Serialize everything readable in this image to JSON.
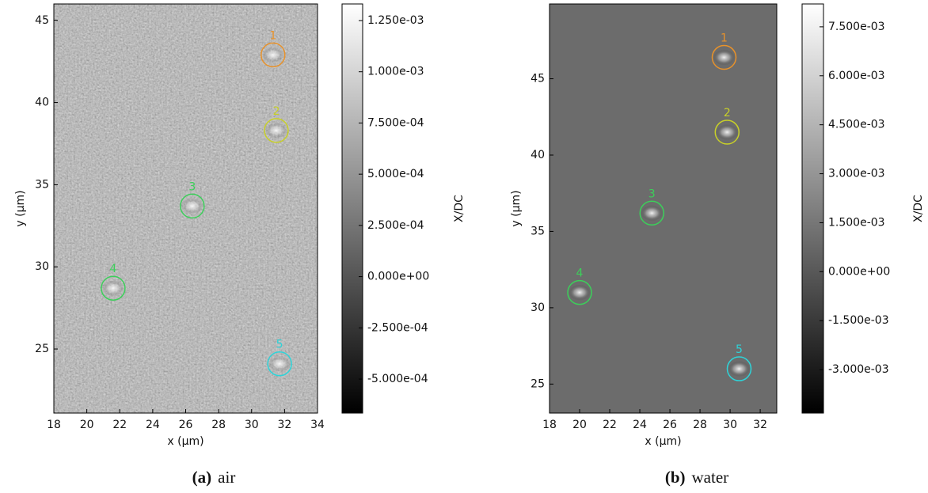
{
  "chart_data": [
    {
      "type": "heatmap",
      "xlabel": "x (µm)",
      "ylabel": "y (µm)",
      "xlim": [
        18,
        34
      ],
      "xticks": [
        18,
        20,
        22,
        24,
        26,
        28,
        30,
        32,
        34
      ],
      "ylim": [
        21.1,
        46.0
      ],
      "yticks": [
        25,
        30,
        35,
        40,
        45
      ],
      "colormap": "gray",
      "colorbar": {
        "label": "X/DC",
        "lim": [
          -0.000666,
          0.001331
        ],
        "ticks": [
          {
            "value": 0.00125,
            "label": "1.250e-03"
          },
          {
            "value": 0.001,
            "label": "1.000e-03"
          },
          {
            "value": 0.00075,
            "label": "7.500e-04"
          },
          {
            "value": 0.0005,
            "label": "5.000e-04"
          },
          {
            "value": 0.00025,
            "label": "2.500e-04"
          },
          {
            "value": 0,
            "label": "0.000e+00"
          },
          {
            "value": -0.00025,
            "label": "-2.500e-04"
          },
          {
            "value": -0.0005,
            "label": "-5.000e-04"
          }
        ]
      },
      "markers": {
        "labels": [
          "1",
          "2",
          "3",
          "4",
          "5"
        ],
        "x": [
          31.3,
          31.5,
          26.4,
          21.6,
          31.7
        ],
        "y": [
          42.9,
          38.3,
          33.7,
          28.7,
          24.1
        ],
        "colors": [
          "#e8922a",
          "#c8d028",
          "#3ccf5a",
          "#3ccf5a",
          "#2ed3d8"
        ]
      },
      "caption_label": "(a)",
      "caption": "air"
    },
    {
      "type": "heatmap",
      "xlabel": "x (µm)",
      "ylabel": "y (µm)",
      "xlim": [
        18,
        33.1
      ],
      "xticks": [
        18,
        20,
        22,
        24,
        26,
        28,
        30,
        32
      ],
      "ylim": [
        23.1,
        49.9
      ],
      "yticks": [
        25,
        30,
        35,
        40,
        45
      ],
      "colormap": "gray",
      "colorbar": {
        "label": "X/DC",
        "lim": [
          -0.00433,
          0.0082
        ],
        "ticks": [
          {
            "value": 0.0075,
            "label": "7.500e-03"
          },
          {
            "value": 0.006,
            "label": "6.000e-03"
          },
          {
            "value": 0.0045,
            "label": "4.500e-03"
          },
          {
            "value": 0.003,
            "label": "3.000e-03"
          },
          {
            "value": 0.0015,
            "label": "1.500e-03"
          },
          {
            "value": 0,
            "label": "0.000e+00"
          },
          {
            "value": -0.0015,
            "label": "-1.500e-03"
          },
          {
            "value": -0.003,
            "label": "-3.000e-03"
          }
        ]
      },
      "markers": {
        "labels": [
          "1",
          "2",
          "3",
          "4",
          "5"
        ],
        "x": [
          29.6,
          29.8,
          24.8,
          20.0,
          30.6
        ],
        "y": [
          46.4,
          41.5,
          36.2,
          31.0,
          26.0
        ],
        "colors": [
          "#e8922a",
          "#c8d028",
          "#3ccf5a",
          "#3ccf5a",
          "#2ed3d8"
        ]
      },
      "caption_label": "(b)",
      "caption": "water"
    }
  ]
}
